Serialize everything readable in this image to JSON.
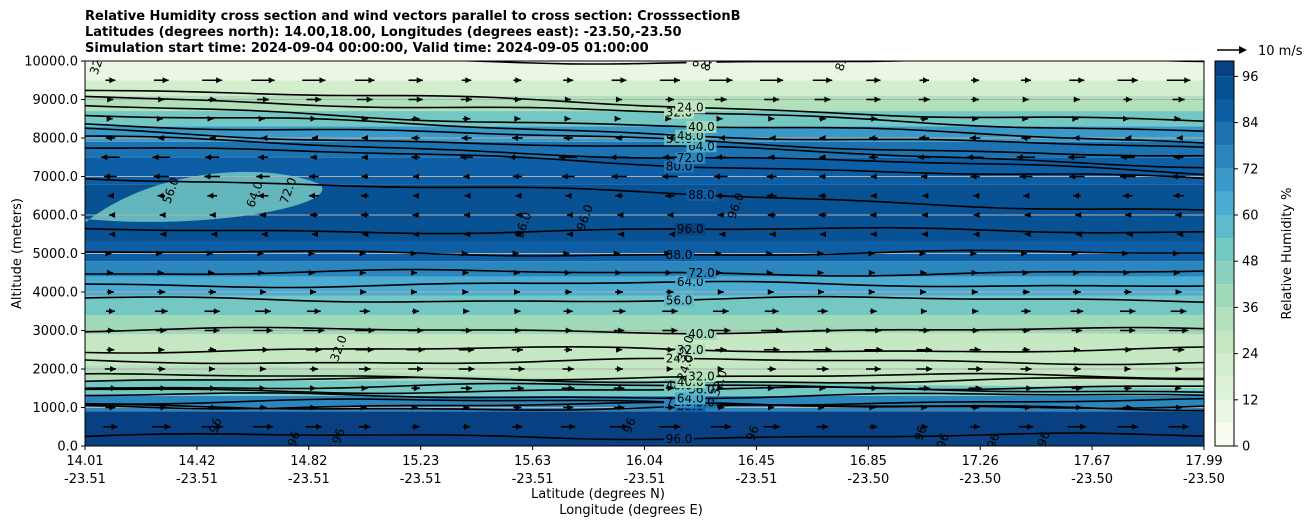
{
  "chart_data": {
    "type": "contourf",
    "title": [
      "Relative Humidity cross section and wind vectors parallel to cross section: CrosssectionB",
      "Latitudes (degrees north): 14.00,18.00, Longitudes (degrees east): -23.50,-23.50",
      "Simulation start time: 2024-09-04 00:00:00, Valid time: 2024-09-05 01:00:00"
    ],
    "xlabel": "Latitude (degrees N)",
    "xlabel2": "Longitude (degrees E)",
    "ylabel": "Altitude (meters)",
    "ylim": [
      0,
      10000
    ],
    "yticks": [
      0,
      1000,
      2000,
      3000,
      4000,
      5000,
      6000,
      7000,
      8000,
      9000,
      10000
    ],
    "ytick_labels": [
      "0.0",
      "1000.0",
      "2000.0",
      "3000.0",
      "4000.0",
      "5000.0",
      "6000.0",
      "7000.0",
      "8000.0",
      "9000.0",
      "10000.0"
    ],
    "xlim": [
      0,
      1
    ],
    "xticks": [
      {
        "lat": "14.01",
        "lon": "-23.51"
      },
      {
        "lat": "14.42",
        "lon": "-23.51"
      },
      {
        "lat": "14.82",
        "lon": "-23.51"
      },
      {
        "lat": "15.23",
        "lon": "-23.51"
      },
      {
        "lat": "15.63",
        "lon": "-23.51"
      },
      {
        "lat": "16.04",
        "lon": "-23.51"
      },
      {
        "lat": "16.45",
        "lon": "-23.51"
      },
      {
        "lat": "16.85",
        "lon": "-23.50"
      },
      {
        "lat": "17.26",
        "lon": "-23.50"
      },
      {
        "lat": "17.67",
        "lon": "-23.50"
      },
      {
        "lat": "17.99",
        "lon": "-23.50"
      }
    ],
    "colorbar": {
      "label": "Relative Humidity %",
      "min": 0,
      "max": 100,
      "ticks": [
        0,
        12,
        24,
        36,
        48,
        60,
        72,
        84,
        96
      ],
      "colors": [
        "#f7fcf0",
        "#eaf7e4",
        "#def2d8",
        "#d3eecd",
        "#c5e8c2",
        "#b2e0bb",
        "#a0d9b9",
        "#8ad1bf",
        "#74c8c4",
        "#5fbac9",
        "#4bacd1",
        "#3a99c8",
        "#2b86bd",
        "#1d72b1",
        "#0e5ea5",
        "#085193",
        "#084081"
      ],
      "color_stops": [
        0,
        6,
        12,
        18,
        24,
        30,
        36,
        42,
        48,
        54,
        60,
        66,
        72,
        78,
        84,
        90,
        96
      ]
    },
    "legend": {
      "quiver_key": "10 m/s",
      "placement": "top-right"
    },
    "contour_levels": [
      {
        "level": 96,
        "altitude": 250,
        "label": "96.0"
      },
      {
        "level": 88,
        "altitude": 1000,
        "label": "88.0"
      },
      {
        "level": 80,
        "altitude": 1050,
        "label": "80.0"
      },
      {
        "level": 72,
        "altitude": 1150,
        "label": "72.0"
      },
      {
        "level": 64,
        "altitude": 1300,
        "label": "64.0"
      },
      {
        "level": 56,
        "altitude": 1450,
        "label": "56.0"
      },
      {
        "level": 48,
        "altitude": 1550,
        "label": "48.0"
      },
      {
        "level": 40,
        "altitude": 1700,
        "label": "40.0"
      },
      {
        "level": 32,
        "altitude": 1800,
        "label": "32.0"
      },
      {
        "level": 24,
        "altitude": 2200,
        "label": "24.0"
      },
      {
        "level": 32,
        "altitude": 2500,
        "label": "32.0"
      },
      {
        "level": 40,
        "altitude": 3000,
        "label": "40.0"
      },
      {
        "level": 56,
        "altitude": 3800,
        "label": "56.0"
      },
      {
        "level": 64,
        "altitude": 4200,
        "label": "64.0"
      },
      {
        "level": 72,
        "altitude": 4500,
        "label": "72.0"
      },
      {
        "level": 88,
        "altitude": 5000,
        "label": "88.0"
      },
      {
        "level": 96,
        "altitude": 5600,
        "label": "96.0"
      },
      {
        "level": 88,
        "altitude": 7000,
        "label": "88.0"
      },
      {
        "level": 80,
        "altitude": 7800,
        "label": "80.0"
      },
      {
        "level": 72,
        "altitude": 8000,
        "label": "72.0"
      },
      {
        "level": 64,
        "altitude": 8200,
        "label": "64.0"
      },
      {
        "level": 56,
        "altitude": 8400,
        "label": "56.0"
      },
      {
        "level": 48,
        "altitude": 8600,
        "label": "48.0"
      },
      {
        "level": 40,
        "altitude": 8800,
        "label": "40.0"
      },
      {
        "level": 32,
        "altitude": 9100,
        "label": "32.0"
      },
      {
        "level": 24,
        "altitude": 9300,
        "label": "24.0"
      },
      {
        "level": 8,
        "altitude": 10000,
        "label": "8.0"
      }
    ],
    "extra_contour_labels": [
      {
        "text": "56.0",
        "x": 0.08,
        "altitude": 6600
      },
      {
        "text": "64.0",
        "x": 0.155,
        "altitude": 6500
      },
      {
        "text": "72.0",
        "x": 0.185,
        "altitude": 6600
      },
      {
        "text": "96.0",
        "x": 0.395,
        "altitude": 5700
      },
      {
        "text": "96.0",
        "x": 0.45,
        "altitude": 5900
      },
      {
        "text": "96.0",
        "x": 0.585,
        "altitude": 6200
      },
      {
        "text": "32.0",
        "x": 0.23,
        "altitude": 2500
      },
      {
        "text": "32.0",
        "x": 0.54,
        "altitude": 2500
      },
      {
        "text": "24.0",
        "x": 0.54,
        "altitude": 2000
      },
      {
        "text": "32.0",
        "x": 0.57,
        "altitude": 1600
      },
      {
        "text": "96",
        "x": 0.12,
        "altitude": 500
      },
      {
        "text": "96",
        "x": 0.19,
        "altitude": 150
      },
      {
        "text": "96",
        "x": 0.23,
        "altitude": 220
      },
      {
        "text": "96",
        "x": 0.49,
        "altitude": 500
      },
      {
        "text": "96",
        "x": 0.6,
        "altitude": 300
      },
      {
        "text": "96",
        "x": 0.75,
        "altitude": 300
      },
      {
        "text": "96",
        "x": 0.77,
        "altitude": 100
      },
      {
        "text": "96",
        "x": 0.815,
        "altitude": 100
      },
      {
        "text": "96",
        "x": 0.86,
        "altitude": 150
      },
      {
        "text": "32.0",
        "x": 0.015,
        "altitude": 9950
      },
      {
        "text": "8.0",
        "x": 0.56,
        "altitude": 9950
      },
      {
        "text": "8.0",
        "x": 0.68,
        "altitude": 9950
      }
    ],
    "wind_vectors": {
      "columns": 22,
      "rows": [
        {
          "altitude": 500,
          "u": 8
        },
        {
          "altitude": 1000,
          "u": 4
        },
        {
          "altitude": 1500,
          "u": 5
        },
        {
          "altitude": 2000,
          "u": 6
        },
        {
          "altitude": 2500,
          "u": 7
        },
        {
          "altitude": 3000,
          "u": 8
        },
        {
          "altitude": 3500,
          "u": 6
        },
        {
          "altitude": 4000,
          "u": 3
        },
        {
          "altitude": 4500,
          "u": 2
        },
        {
          "altitude": 5000,
          "u": 1
        },
        {
          "altitude": 5500,
          "u": -2
        },
        {
          "altitude": 6000,
          "u": -3
        },
        {
          "altitude": 6500,
          "u": -4
        },
        {
          "altitude": 7000,
          "u": -6
        },
        {
          "altitude": 7500,
          "u": -7
        },
        {
          "altitude": 8000,
          "u": -4
        },
        {
          "altitude": 8500,
          "u": 3
        },
        {
          "altitude": 9000,
          "u": 6
        },
        {
          "altitude": 9500,
          "u": 9
        }
      ]
    }
  }
}
